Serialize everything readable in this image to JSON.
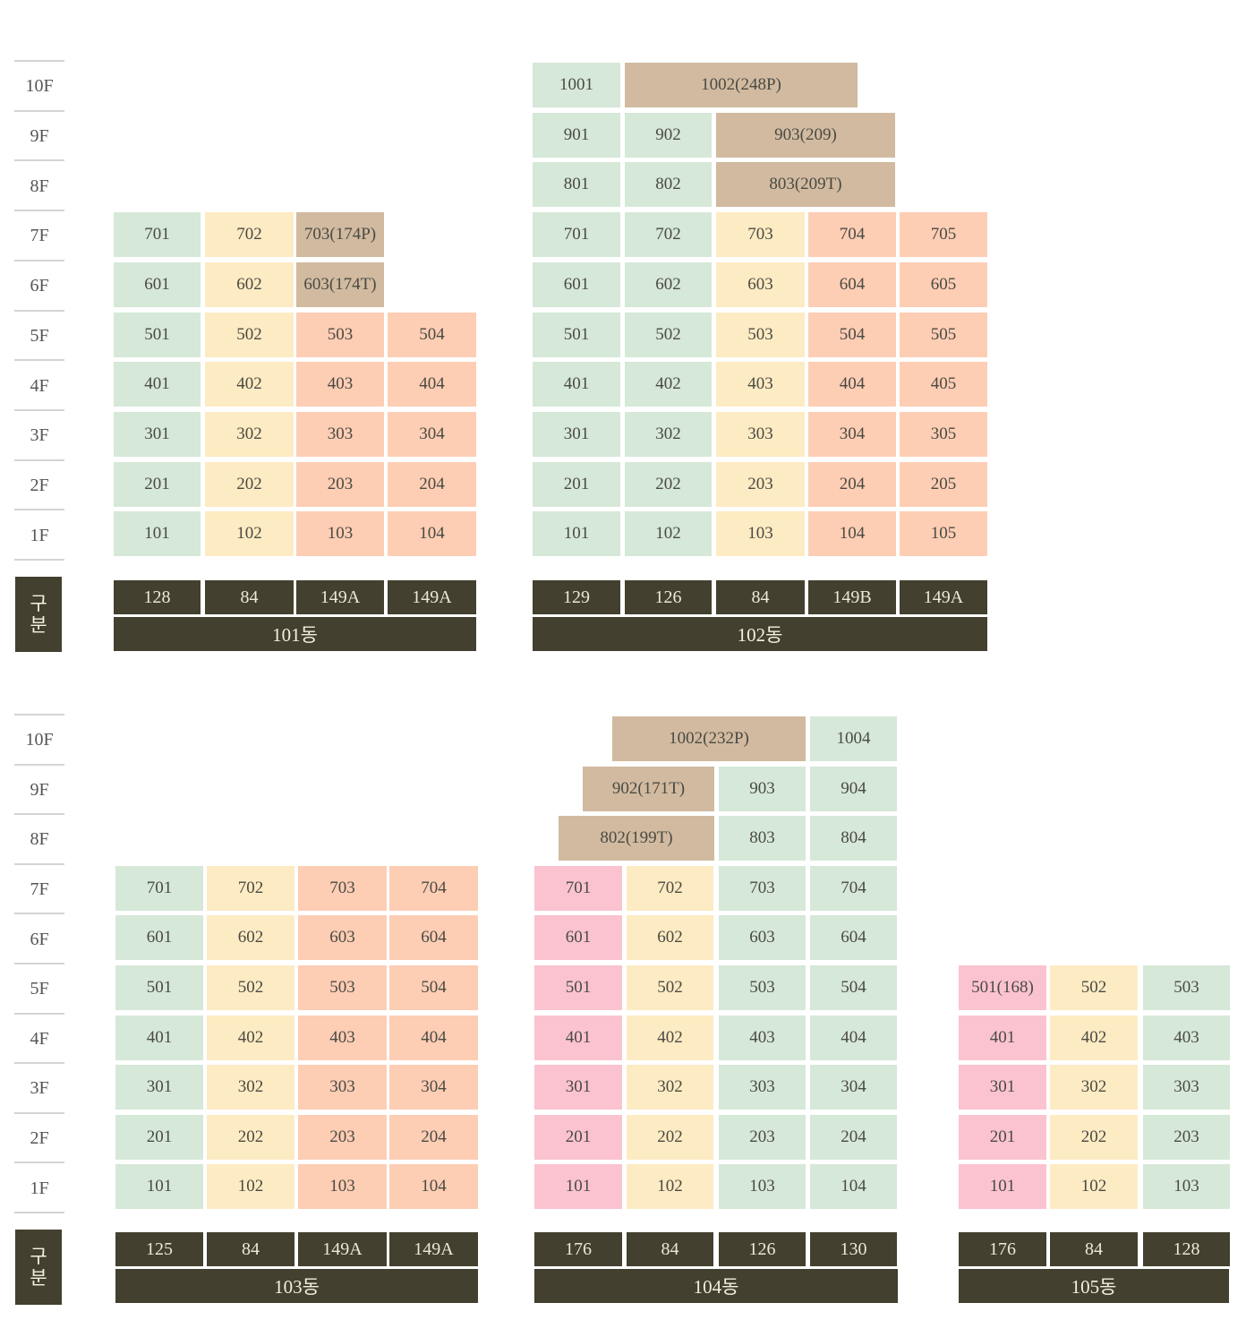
{
  "floor_labels": [
    "10F",
    "9F",
    "8F",
    "7F",
    "6F",
    "5F",
    "4F",
    "3F",
    "2F",
    "1F"
  ],
  "gubun_label": [
    "구",
    "분"
  ],
  "colors": {
    "mint": "#d6e8d8",
    "cream": "#fdebc3",
    "peach": "#fdcdb4",
    "tan": "#d1baa0",
    "pink": "#fbc3cf",
    "dark": "#43402f"
  },
  "buildings": [
    {
      "name": "101동",
      "types": [
        "128",
        "84",
        "149A",
        "149A"
      ],
      "units": [
        {
          "floor": "7F",
          "label": "701",
          "color": "mint"
        },
        {
          "floor": "7F",
          "label": "702",
          "color": "cream"
        },
        {
          "floor": "7F",
          "label": "703(174P)",
          "color": "tan"
        },
        {
          "floor": "6F",
          "label": "601",
          "color": "mint"
        },
        {
          "floor": "6F",
          "label": "602",
          "color": "cream"
        },
        {
          "floor": "6F",
          "label": "603(174T)",
          "color": "tan"
        },
        {
          "floor": "5F",
          "label": "501",
          "color": "mint"
        },
        {
          "floor": "5F",
          "label": "502",
          "color": "cream"
        },
        {
          "floor": "5F",
          "label": "503",
          "color": "peach"
        },
        {
          "floor": "5F",
          "label": "504",
          "color": "peach"
        },
        {
          "floor": "4F",
          "label": "401",
          "color": "mint"
        },
        {
          "floor": "4F",
          "label": "402",
          "color": "cream"
        },
        {
          "floor": "4F",
          "label": "403",
          "color": "peach"
        },
        {
          "floor": "4F",
          "label": "404",
          "color": "peach"
        },
        {
          "floor": "3F",
          "label": "301",
          "color": "mint"
        },
        {
          "floor": "3F",
          "label": "302",
          "color": "cream"
        },
        {
          "floor": "3F",
          "label": "303",
          "color": "peach"
        },
        {
          "floor": "3F",
          "label": "304",
          "color": "peach"
        },
        {
          "floor": "2F",
          "label": "201",
          "color": "mint"
        },
        {
          "floor": "2F",
          "label": "202",
          "color": "cream"
        },
        {
          "floor": "2F",
          "label": "203",
          "color": "peach"
        },
        {
          "floor": "2F",
          "label": "204",
          "color": "peach"
        },
        {
          "floor": "1F",
          "label": "101",
          "color": "mint"
        },
        {
          "floor": "1F",
          "label": "102",
          "color": "cream"
        },
        {
          "floor": "1F",
          "label": "103",
          "color": "peach"
        },
        {
          "floor": "1F",
          "label": "104",
          "color": "peach"
        }
      ]
    },
    {
      "name": "102동",
      "types": [
        "129",
        "126",
        "84",
        "149B",
        "149A"
      ],
      "units": [
        {
          "floor": "10F",
          "label": "1001",
          "color": "mint"
        },
        {
          "floor": "10F",
          "label": "1002(248P)",
          "color": "tan"
        },
        {
          "floor": "9F",
          "label": "901",
          "color": "mint"
        },
        {
          "floor": "9F",
          "label": "902",
          "color": "mint"
        },
        {
          "floor": "9F",
          "label": "903(209)",
          "color": "tan"
        },
        {
          "floor": "8F",
          "label": "801",
          "color": "mint"
        },
        {
          "floor": "8F",
          "label": "802",
          "color": "mint"
        },
        {
          "floor": "8F",
          "label": "803(209T)",
          "color": "tan"
        },
        {
          "floor": "7F",
          "label": "701",
          "color": "mint"
        },
        {
          "floor": "7F",
          "label": "702",
          "color": "mint"
        },
        {
          "floor": "7F",
          "label": "703",
          "color": "cream"
        },
        {
          "floor": "7F",
          "label": "704",
          "color": "peach"
        },
        {
          "floor": "7F",
          "label": "705",
          "color": "peach"
        },
        {
          "floor": "6F",
          "label": "601",
          "color": "mint"
        },
        {
          "floor": "6F",
          "label": "602",
          "color": "mint"
        },
        {
          "floor": "6F",
          "label": "603",
          "color": "cream"
        },
        {
          "floor": "6F",
          "label": "604",
          "color": "peach"
        },
        {
          "floor": "6F",
          "label": "605",
          "color": "peach"
        },
        {
          "floor": "5F",
          "label": "501",
          "color": "mint"
        },
        {
          "floor": "5F",
          "label": "502",
          "color": "mint"
        },
        {
          "floor": "5F",
          "label": "503",
          "color": "cream"
        },
        {
          "floor": "5F",
          "label": "504",
          "color": "peach"
        },
        {
          "floor": "5F",
          "label": "505",
          "color": "peach"
        },
        {
          "floor": "4F",
          "label": "401",
          "color": "mint"
        },
        {
          "floor": "4F",
          "label": "402",
          "color": "mint"
        },
        {
          "floor": "4F",
          "label": "403",
          "color": "cream"
        },
        {
          "floor": "4F",
          "label": "404",
          "color": "peach"
        },
        {
          "floor": "4F",
          "label": "405",
          "color": "peach"
        },
        {
          "floor": "3F",
          "label": "301",
          "color": "mint"
        },
        {
          "floor": "3F",
          "label": "302",
          "color": "mint"
        },
        {
          "floor": "3F",
          "label": "303",
          "color": "cream"
        },
        {
          "floor": "3F",
          "label": "304",
          "color": "peach"
        },
        {
          "floor": "3F",
          "label": "305",
          "color": "peach"
        },
        {
          "floor": "2F",
          "label": "201",
          "color": "mint"
        },
        {
          "floor": "2F",
          "label": "202",
          "color": "mint"
        },
        {
          "floor": "2F",
          "label": "203",
          "color": "cream"
        },
        {
          "floor": "2F",
          "label": "204",
          "color": "peach"
        },
        {
          "floor": "2F",
          "label": "205",
          "color": "peach"
        },
        {
          "floor": "1F",
          "label": "101",
          "color": "mint"
        },
        {
          "floor": "1F",
          "label": "102",
          "color": "mint"
        },
        {
          "floor": "1F",
          "label": "103",
          "color": "cream"
        },
        {
          "floor": "1F",
          "label": "104",
          "color": "peach"
        },
        {
          "floor": "1F",
          "label": "105",
          "color": "peach"
        }
      ]
    },
    {
      "name": "103동",
      "types": [
        "125",
        "84",
        "149A",
        "149A"
      ],
      "units": [
        {
          "floor": "7F",
          "label": "701",
          "color": "mint"
        },
        {
          "floor": "7F",
          "label": "702",
          "color": "cream"
        },
        {
          "floor": "7F",
          "label": "703",
          "color": "peach"
        },
        {
          "floor": "7F",
          "label": "704",
          "color": "peach"
        },
        {
          "floor": "6F",
          "label": "601",
          "color": "mint"
        },
        {
          "floor": "6F",
          "label": "602",
          "color": "cream"
        },
        {
          "floor": "6F",
          "label": "603",
          "color": "peach"
        },
        {
          "floor": "6F",
          "label": "604",
          "color": "peach"
        },
        {
          "floor": "5F",
          "label": "501",
          "color": "mint"
        },
        {
          "floor": "5F",
          "label": "502",
          "color": "cream"
        },
        {
          "floor": "5F",
          "label": "503",
          "color": "peach"
        },
        {
          "floor": "5F",
          "label": "504",
          "color": "peach"
        },
        {
          "floor": "4F",
          "label": "401",
          "color": "mint"
        },
        {
          "floor": "4F",
          "label": "402",
          "color": "cream"
        },
        {
          "floor": "4F",
          "label": "403",
          "color": "peach"
        },
        {
          "floor": "4F",
          "label": "404",
          "color": "peach"
        },
        {
          "floor": "3F",
          "label": "301",
          "color": "mint"
        },
        {
          "floor": "3F",
          "label": "302",
          "color": "cream"
        },
        {
          "floor": "3F",
          "label": "303",
          "color": "peach"
        },
        {
          "floor": "3F",
          "label": "304",
          "color": "peach"
        },
        {
          "floor": "2F",
          "label": "201",
          "color": "mint"
        },
        {
          "floor": "2F",
          "label": "202",
          "color": "cream"
        },
        {
          "floor": "2F",
          "label": "203",
          "color": "peach"
        },
        {
          "floor": "2F",
          "label": "204",
          "color": "peach"
        },
        {
          "floor": "1F",
          "label": "101",
          "color": "mint"
        },
        {
          "floor": "1F",
          "label": "102",
          "color": "cream"
        },
        {
          "floor": "1F",
          "label": "103",
          "color": "peach"
        },
        {
          "floor": "1F",
          "label": "104",
          "color": "peach"
        }
      ]
    },
    {
      "name": "104동",
      "types": [
        "176",
        "84",
        "126",
        "130"
      ],
      "units": [
        {
          "floor": "10F",
          "label": "1002(232P)",
          "color": "tan"
        },
        {
          "floor": "10F",
          "label": "1004",
          "color": "mint"
        },
        {
          "floor": "9F",
          "label": "902(171T)",
          "color": "tan"
        },
        {
          "floor": "9F",
          "label": "903",
          "color": "mint"
        },
        {
          "floor": "9F",
          "label": "904",
          "color": "mint"
        },
        {
          "floor": "8F",
          "label": "802(199T)",
          "color": "tan"
        },
        {
          "floor": "8F",
          "label": "803",
          "color": "mint"
        },
        {
          "floor": "8F",
          "label": "804",
          "color": "mint"
        },
        {
          "floor": "7F",
          "label": "701",
          "color": "pink"
        },
        {
          "floor": "7F",
          "label": "702",
          "color": "cream"
        },
        {
          "floor": "7F",
          "label": "703",
          "color": "mint"
        },
        {
          "floor": "7F",
          "label": "704",
          "color": "mint"
        },
        {
          "floor": "6F",
          "label": "601",
          "color": "pink"
        },
        {
          "floor": "6F",
          "label": "602",
          "color": "cream"
        },
        {
          "floor": "6F",
          "label": "603",
          "color": "mint"
        },
        {
          "floor": "6F",
          "label": "604",
          "color": "mint"
        },
        {
          "floor": "5F",
          "label": "501",
          "color": "pink"
        },
        {
          "floor": "5F",
          "label": "502",
          "color": "cream"
        },
        {
          "floor": "5F",
          "label": "503",
          "color": "mint"
        },
        {
          "floor": "5F",
          "label": "504",
          "color": "mint"
        },
        {
          "floor": "4F",
          "label": "401",
          "color": "pink"
        },
        {
          "floor": "4F",
          "label": "402",
          "color": "cream"
        },
        {
          "floor": "4F",
          "label": "403",
          "color": "mint"
        },
        {
          "floor": "4F",
          "label": "404",
          "color": "mint"
        },
        {
          "floor": "3F",
          "label": "301",
          "color": "pink"
        },
        {
          "floor": "3F",
          "label": "302",
          "color": "cream"
        },
        {
          "floor": "3F",
          "label": "303",
          "color": "mint"
        },
        {
          "floor": "3F",
          "label": "304",
          "color": "mint"
        },
        {
          "floor": "2F",
          "label": "201",
          "color": "pink"
        },
        {
          "floor": "2F",
          "label": "202",
          "color": "cream"
        },
        {
          "floor": "2F",
          "label": "203",
          "color": "mint"
        },
        {
          "floor": "2F",
          "label": "204",
          "color": "mint"
        },
        {
          "floor": "1F",
          "label": "101",
          "color": "pink"
        },
        {
          "floor": "1F",
          "label": "102",
          "color": "cream"
        },
        {
          "floor": "1F",
          "label": "103",
          "color": "mint"
        },
        {
          "floor": "1F",
          "label": "104",
          "color": "mint"
        }
      ]
    },
    {
      "name": "105동",
      "types": [
        "176",
        "84",
        "128"
      ],
      "units": [
        {
          "floor": "5F",
          "label": "501(168)",
          "color": "pink"
        },
        {
          "floor": "5F",
          "label": "502",
          "color": "cream"
        },
        {
          "floor": "5F",
          "label": "503",
          "color": "mint"
        },
        {
          "floor": "4F",
          "label": "401",
          "color": "pink"
        },
        {
          "floor": "4F",
          "label": "402",
          "color": "cream"
        },
        {
          "floor": "4F",
          "label": "403",
          "color": "mint"
        },
        {
          "floor": "3F",
          "label": "301",
          "color": "pink"
        },
        {
          "floor": "3F",
          "label": "302",
          "color": "cream"
        },
        {
          "floor": "3F",
          "label": "303",
          "color": "mint"
        },
        {
          "floor": "2F",
          "label": "201",
          "color": "pink"
        },
        {
          "floor": "2F",
          "label": "202",
          "color": "cream"
        },
        {
          "floor": "2F",
          "label": "203",
          "color": "mint"
        },
        {
          "floor": "1F",
          "label": "101",
          "color": "pink"
        },
        {
          "floor": "1F",
          "label": "102",
          "color": "cream"
        },
        {
          "floor": "1F",
          "label": "103",
          "color": "mint"
        }
      ]
    }
  ]
}
